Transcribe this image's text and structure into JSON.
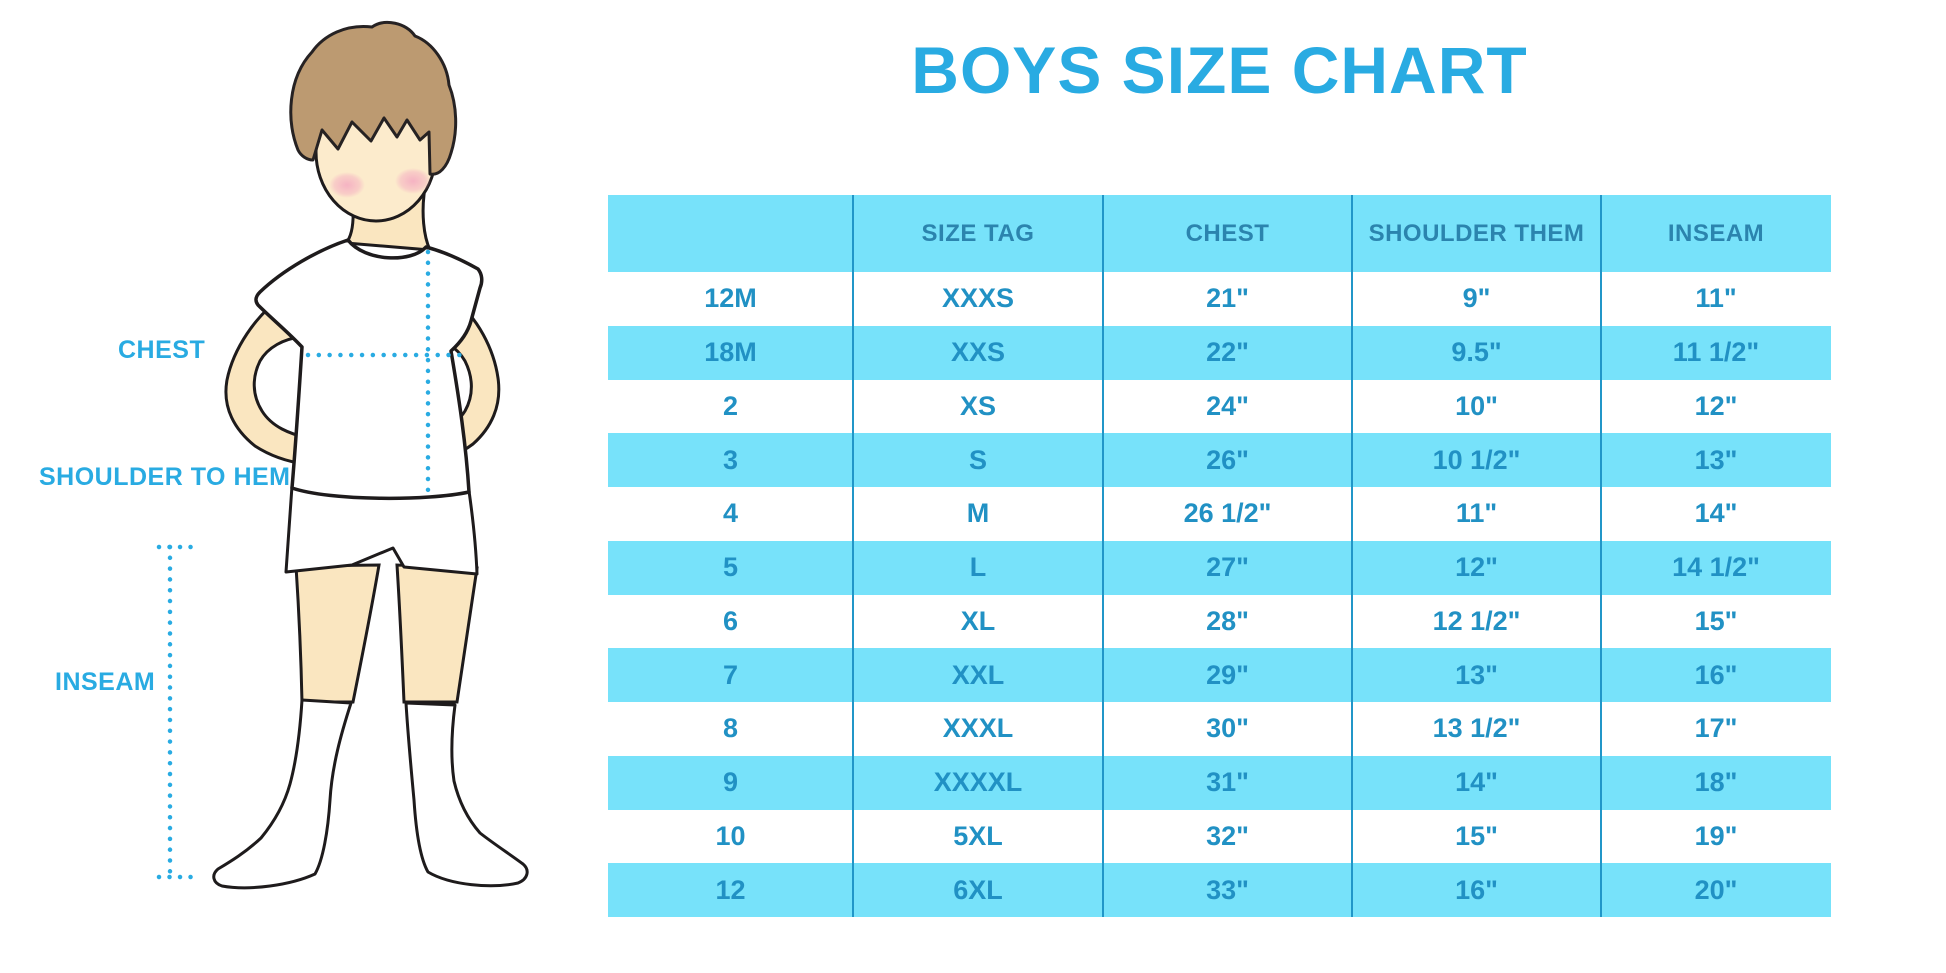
{
  "title": "BOYS SIZE CHART",
  "colors": {
    "accent_blue": "#29ABE2",
    "table_fill": "#77E2FA",
    "table_text": "#2191C4",
    "header_text": "#2B84AE",
    "divider": "#2196C8",
    "skin": "#FAE6C0",
    "hair": "#BC9A71",
    "blush": "#F4A9C1"
  },
  "figure": {
    "labels": {
      "chest": "CHEST",
      "shoulder_to_hem": "SHOULDER TO HEM",
      "inseam": "INSEAM"
    }
  },
  "chart_data": {
    "type": "table",
    "title": "BOYS SIZE CHART",
    "columns": [
      "",
      "SIZE TAG",
      "CHEST",
      "SHOULDER THEM",
      "INSEAM"
    ],
    "rows": [
      [
        "12M",
        "XXXS",
        "21\"",
        "9\"",
        "11\""
      ],
      [
        "18M",
        "XXS",
        "22\"",
        "9.5\"",
        "11 1/2\""
      ],
      [
        "2",
        "XS",
        "24\"",
        "10\"",
        "12\""
      ],
      [
        "3",
        "S",
        "26\"",
        "10 1/2\"",
        "13\""
      ],
      [
        "4",
        "M",
        "26 1/2\"",
        "11\"",
        "14\""
      ],
      [
        "5",
        "L",
        "27\"",
        "12\"",
        "14 1/2\""
      ],
      [
        "6",
        "XL",
        "28\"",
        "12 1/2\"",
        "15\""
      ],
      [
        "7",
        "XXL",
        "29\"",
        "13\"",
        "16\""
      ],
      [
        "8",
        "XXXL",
        "30\"",
        "13 1/2\"",
        "17\""
      ],
      [
        "9",
        "XXXXL",
        "31\"",
        "14\"",
        "18\""
      ],
      [
        "10",
        "5XL",
        "32\"",
        "15\"",
        "19\""
      ],
      [
        "12",
        "6XL",
        "33\"",
        "16\"",
        "20\""
      ]
    ],
    "layout": {
      "zebra_striping": "white / light-blue alternating, header light-blue",
      "column_dividers": true,
      "outer_border": false
    }
  }
}
